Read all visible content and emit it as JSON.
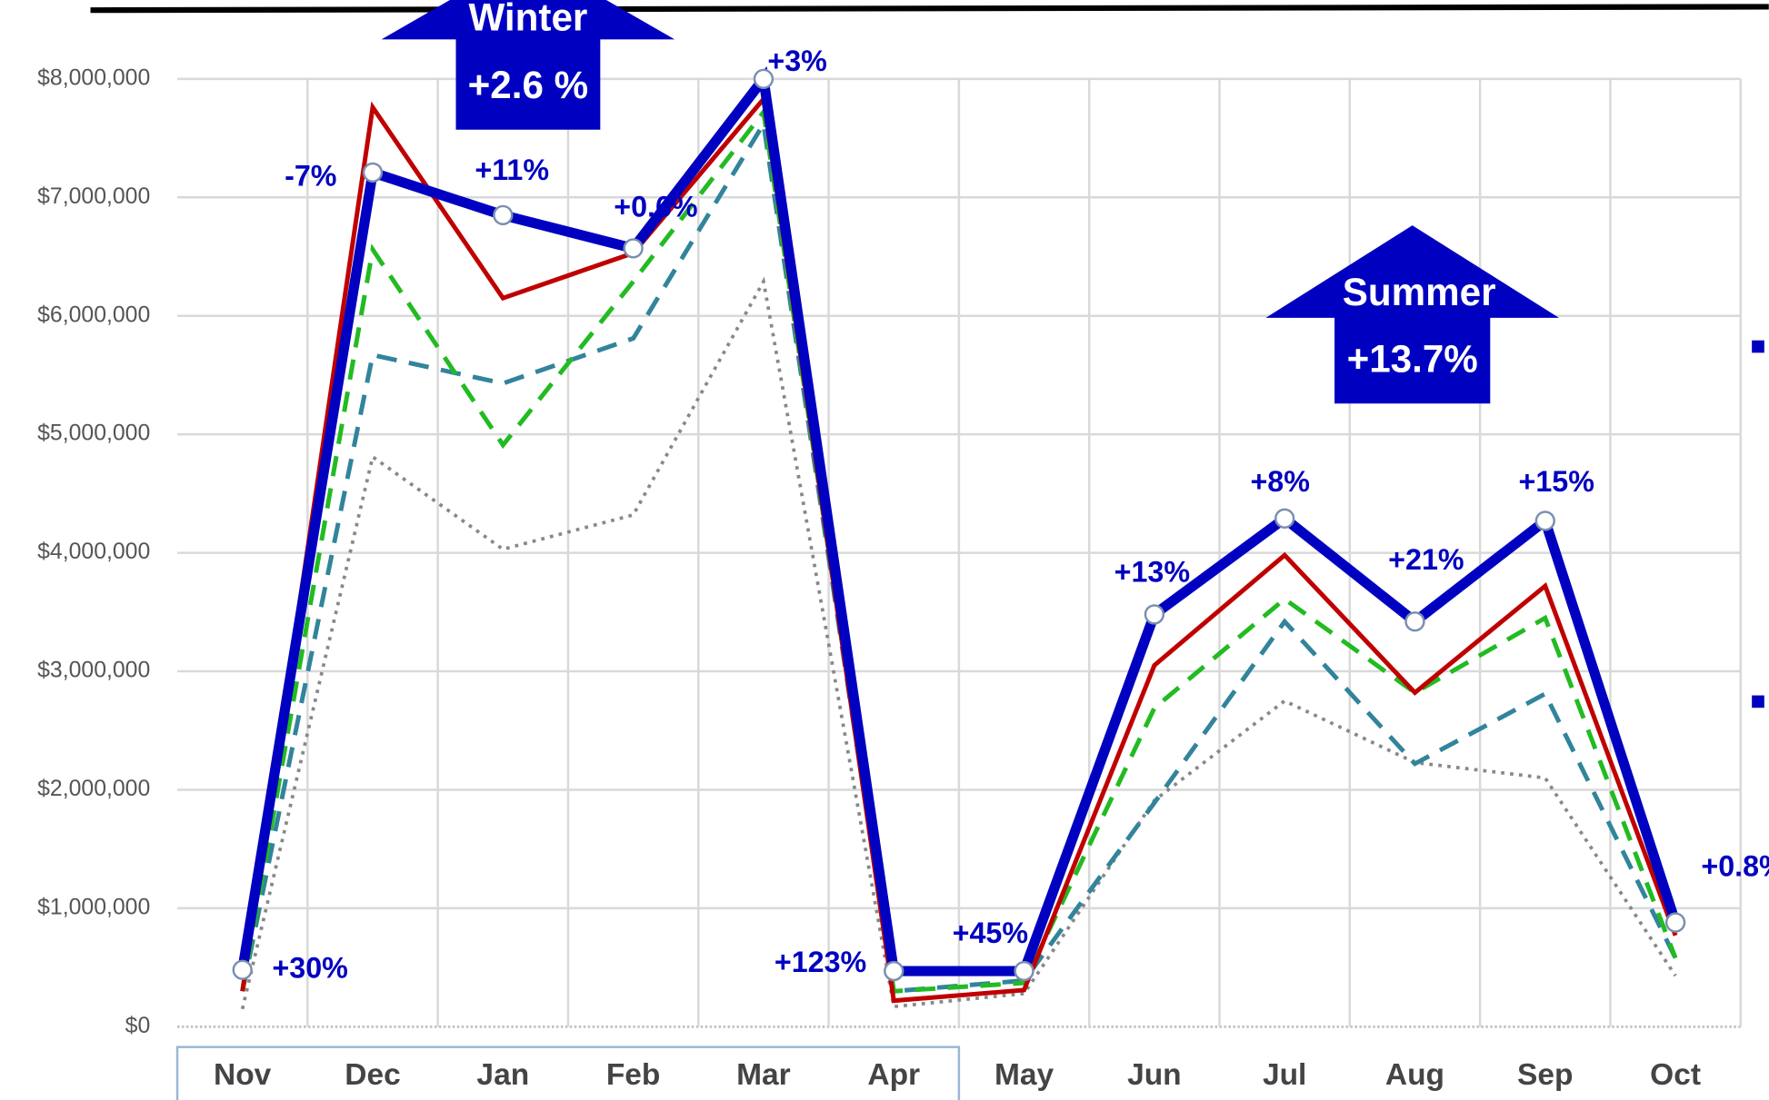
{
  "chart_data": {
    "type": "line",
    "categories": [
      "Nov",
      "Dec",
      "Jan",
      "Feb",
      "Mar",
      "Apr",
      "May",
      "Jun",
      "Jul",
      "Aug",
      "Sep",
      "Oct"
    ],
    "series": [
      {
        "color": "#888888",
        "style": "dotted",
        "width": 3,
        "values": [
          150000,
          4810000,
          4030000,
          4320000,
          6290000,
          170000,
          280000,
          1910000,
          2750000,
          2230000,
          2100000,
          430000
        ]
      },
      {
        "color": "#31849b",
        "style": "dashed",
        "width": 4,
        "values": [
          300000,
          5670000,
          5430000,
          5810000,
          7620000,
          300000,
          390000,
          1890000,
          3420000,
          2220000,
          2810000,
          580000
        ]
      },
      {
        "color": "#22bb22",
        "style": "dashed",
        "width": 4,
        "values": [
          300000,
          6560000,
          4910000,
          6290000,
          7720000,
          300000,
          370000,
          2690000,
          3610000,
          2820000,
          3450000,
          580000
        ]
      },
      {
        "color": "#c00000",
        "style": "solid",
        "width": 4,
        "values": [
          300000,
          7760000,
          6150000,
          6530000,
          7830000,
          220000,
          310000,
          3050000,
          3980000,
          2820000,
          3720000,
          770000
        ]
      },
      {
        "color": "#0000c0",
        "style": "solid",
        "width": 9,
        "markers": true,
        "values": [
          480000,
          7210000,
          6850000,
          6570000,
          8000000,
          470000,
          470000,
          3480000,
          4290000,
          3420000,
          4270000,
          880000
        ],
        "point_labels": [
          "+30%",
          "-7%",
          "+11%",
          "+0.6%",
          "+3%",
          "+123%",
          "+45%",
          "+13%",
          "+8%",
          "+21%",
          "+15%",
          "+0.8%"
        ]
      }
    ],
    "annotations": [
      {
        "title": "Winter",
        "text": "+2.6 %"
      },
      {
        "title": "Summer",
        "text": "+13.7%"
      }
    ],
    "ylim": [
      0,
      8000000
    ],
    "yticks": [
      {
        "value": 0,
        "label": "$0"
      },
      {
        "value": 1000000,
        "label": "$1,000,000"
      },
      {
        "value": 2000000,
        "label": "$2,000,000"
      },
      {
        "value": 3000000,
        "label": "$3,000,000"
      },
      {
        "value": 4000000,
        "label": "$4,000,000"
      },
      {
        "value": 5000000,
        "label": "$5,000,000"
      },
      {
        "value": 6000000,
        "label": "$6,000,000"
      },
      {
        "value": 7000000,
        "label": "$7,000,000"
      },
      {
        "value": 8000000,
        "label": "$8,000,000"
      }
    ],
    "grid": true
  }
}
